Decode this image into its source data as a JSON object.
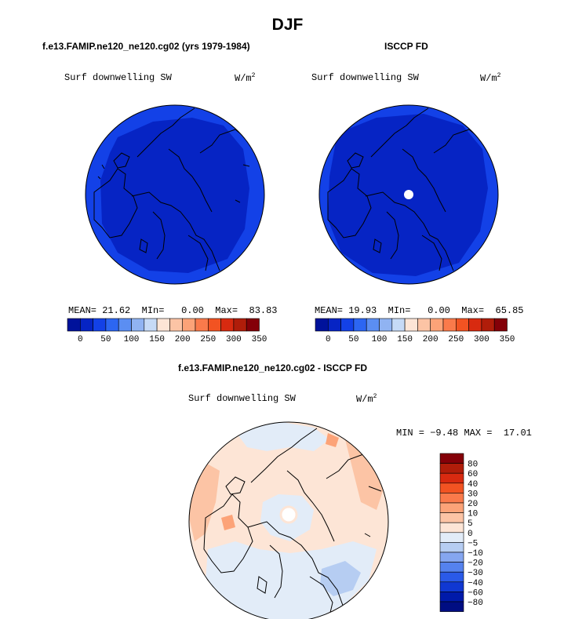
{
  "title": "DJF",
  "chart_data": [
    {
      "type": "heatmap",
      "projection": "north-polar-stereographic",
      "case_title": "f.e13.FAMIP.ne120_ne120.cg02 (yrs 1979-1984)",
      "variable": "Surf downwelling SW",
      "units_base": "W/m",
      "units_exp": "2",
      "stats": {
        "mean_label": "MEAN=",
        "mean": "21.62",
        "min_label": "MIn=",
        "min": "0.00",
        "max_label": "Max=",
        "max": "83.83"
      },
      "colorbar": {
        "colors": [
          "#00129b",
          "#0624c4",
          "#1341e7",
          "#2c66f2",
          "#5b8ef2",
          "#90b3f2",
          "#c6daf6",
          "#fde5d6",
          "#fcc4a5",
          "#fca378",
          "#fa7a4b",
          "#f25322",
          "#d82a10",
          "#b01d0a",
          "#840008"
        ],
        "tick_labels": [
          "0",
          "50",
          "100",
          "150",
          "200",
          "250",
          "300",
          "350"
        ]
      },
      "field_levels": [
        {
          "range": "25-50",
          "color": "#1341e7"
        },
        {
          "range": "0-25",
          "color": "#0624c4"
        }
      ]
    },
    {
      "type": "heatmap",
      "projection": "north-polar-stereographic",
      "case_title": "ISCCP FD",
      "variable": "Surf downwelling SW",
      "units_base": "W/m",
      "units_exp": "2",
      "stats": {
        "mean_label": "MEAN=",
        "mean": "19.93",
        "min_label": "MIn=",
        "min": "0.00",
        "max_label": "Max=",
        "max": "65.85"
      },
      "colorbar": {
        "colors": [
          "#00129b",
          "#0624c4",
          "#1341e7",
          "#2c66f2",
          "#5b8ef2",
          "#90b3f2",
          "#c6daf6",
          "#fde5d6",
          "#fcc4a5",
          "#fca378",
          "#fa7a4b",
          "#f25322",
          "#d82a10",
          "#b01d0a",
          "#840008"
        ],
        "tick_labels": [
          "0",
          "50",
          "100",
          "150",
          "200",
          "250",
          "300",
          "350"
        ]
      },
      "field_levels": [
        {
          "range": "25-50",
          "color": "#1341e7"
        },
        {
          "range": "0-25",
          "color": "#0624c4"
        }
      ]
    },
    {
      "type": "heatmap",
      "projection": "north-polar-stereographic",
      "case_title": "f.e13.FAMIP.ne120_ne120.cg02 - ISCCP FD",
      "variable": "Surf downwelling SW",
      "units_base": "W/m",
      "units_exp": "2",
      "stats": {
        "min_label": "MIN =",
        "min": "−9.48",
        "max_label": "MAX =",
        "max": "17.01"
      },
      "colorbar": {
        "colors": [
          "#840008",
          "#b01d0a",
          "#d82a10",
          "#f25322",
          "#fa7a4b",
          "#fca378",
          "#fcc4a5",
          "#fde5d6",
          "#e2ecf8",
          "#b6cdf2",
          "#85a6f0",
          "#5582ee",
          "#2a5ae8",
          "#1038d2",
          "#001aaa",
          "#000d82"
        ],
        "tick_labels": [
          "80",
          "60",
          "40",
          "30",
          "20",
          "10",
          "5",
          "0",
          "−5",
          "−10",
          "−20",
          "−30",
          "−40",
          "−60",
          "−80"
        ]
      },
      "field_levels": [
        {
          "range": "0 to 5",
          "color": "#fde5d6"
        },
        {
          "range": "5 to 10",
          "color": "#fcc4a5"
        },
        {
          "range": "-5 to 0",
          "color": "#e2ecf8"
        },
        {
          "range": "-10 to -5",
          "color": "#b6cdf2"
        }
      ]
    }
  ]
}
